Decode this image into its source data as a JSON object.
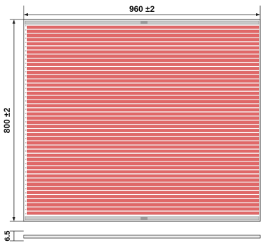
{
  "dimensions": {
    "width_label": "960 ±2",
    "height_label": "800 ±2",
    "thickness_label": "6.5"
  },
  "panel": {
    "slat_count": 46,
    "slat_color": "#e06868",
    "slat_edge_color": "#c24848",
    "rail_color": "#c8c8c8",
    "line_color": "#222222"
  }
}
